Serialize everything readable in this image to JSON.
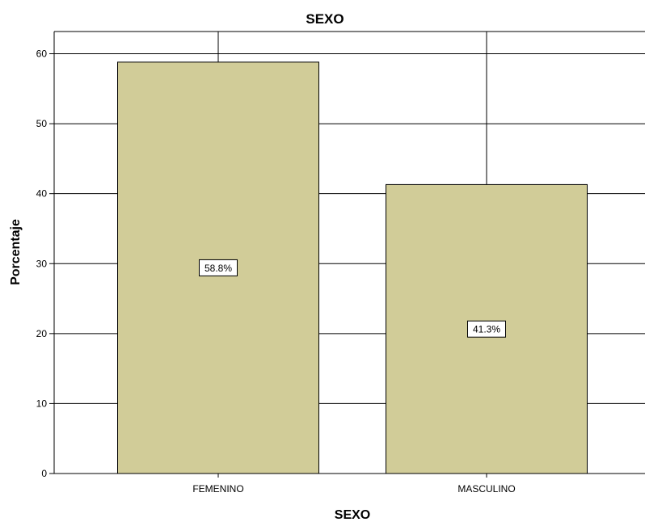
{
  "chart_data": {
    "type": "bar",
    "title": "SEXO",
    "xlabel": "SEXO",
    "ylabel": "Porcentaje",
    "categories": [
      "FEMENINO",
      "MASCULINO"
    ],
    "values": [
      58.8,
      41.3
    ],
    "data_labels": [
      "58.8%",
      "41.3%"
    ],
    "ylim": [
      0,
      60
    ],
    "yticks": [
      0,
      10,
      20,
      30,
      40,
      50,
      60
    ],
    "grid": true,
    "bar_color": "#d1cc98",
    "bar_edge_color": "#000000"
  }
}
